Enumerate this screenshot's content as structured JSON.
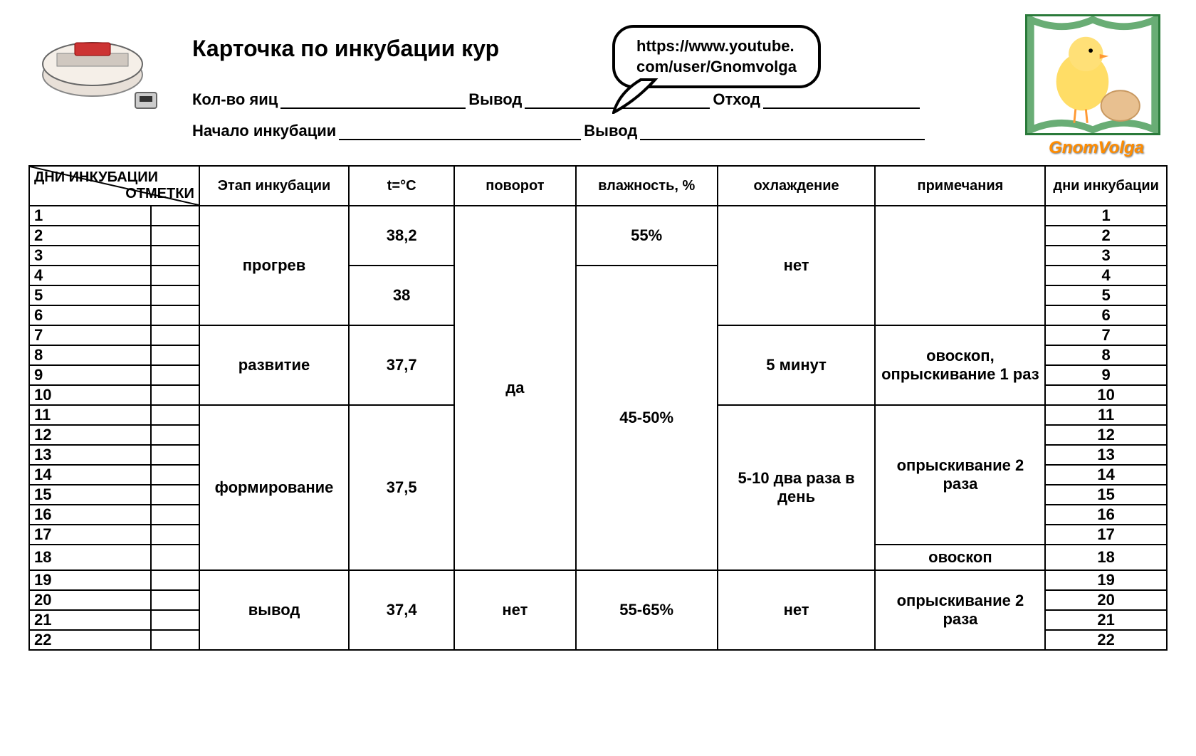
{
  "title": "Карточка по инкубации кур",
  "url_line1": "https://www.youtube.",
  "url_line2": "com/user/Gnomvolga",
  "logo_text": "GnomVolga",
  "form": {
    "eggs_label": "Кол-во яиц",
    "output_label": "Вывод",
    "waste_label": "Отход",
    "start_label": "Начало инкубации",
    "output2_label": "Вывод"
  },
  "columns": {
    "diag_top": "ДНИ ИНКУБАЦИИ",
    "diag_bot": "ОТМЕТКИ",
    "stage": "Этап инкубации",
    "temp": "t=°C",
    "turn": "поворот",
    "humidity": "влажность, %",
    "cooling": "охлаждение",
    "notes": "примечания",
    "days_r": "дни инкубации"
  },
  "col_widths": {
    "diag": "150px",
    "marks": "60px",
    "stage": "185px",
    "temp": "130px",
    "turn": "150px",
    "humidity": "175px",
    "cooling": "195px",
    "notes": "210px",
    "days_r": "150px"
  },
  "days": [
    "1",
    "2",
    "3",
    "4",
    "5",
    "6",
    "7",
    "8",
    "9",
    "10",
    "11",
    "12",
    "13",
    "14",
    "15",
    "16",
    "17",
    "18",
    "19",
    "20",
    "21",
    "22"
  ],
  "stages": [
    {
      "label": "прогрев",
      "rows": 6
    },
    {
      "label": "развитие",
      "rows": 4
    },
    {
      "label": "формирование",
      "rows": 8
    },
    {
      "label": "вывод",
      "rows": 4
    }
  ],
  "temps": [
    {
      "label": "38,2",
      "rows": 3
    },
    {
      "label": "38",
      "rows": 3
    },
    {
      "label": "37,7",
      "rows": 4
    },
    {
      "label": "37,5",
      "rows": 8
    },
    {
      "label": "37,4",
      "rows": 4
    }
  ],
  "turns": [
    {
      "label": "да",
      "rows": 18
    },
    {
      "label": "нет",
      "rows": 4
    }
  ],
  "humidity": [
    {
      "label": "55%",
      "rows": 3
    },
    {
      "label": "45-50%",
      "rows": 15
    },
    {
      "label": "55-65%",
      "rows": 4
    }
  ],
  "cooling": [
    {
      "label": "нет",
      "rows": 6
    },
    {
      "label": "5 минут",
      "rows": 4
    },
    {
      "label": "5-10 два раза в день",
      "rows": 8
    },
    {
      "label": "нет",
      "rows": 4
    }
  ],
  "notes": [
    {
      "label": "",
      "rows": 6
    },
    {
      "label": "овоскоп, опрыскивание 1 раз",
      "rows": 4
    },
    {
      "label": "опрыскивание 2 раза",
      "rows": 7
    },
    {
      "label": "овоскоп",
      "rows": 1
    },
    {
      "label": "опрыскивание 2 раза",
      "rows": 4
    }
  ],
  "colors": {
    "border": "#000000",
    "bg": "#ffffff",
    "text": "#000000",
    "logo": "#ff8c00",
    "chick_border": "#2a7a3a"
  }
}
